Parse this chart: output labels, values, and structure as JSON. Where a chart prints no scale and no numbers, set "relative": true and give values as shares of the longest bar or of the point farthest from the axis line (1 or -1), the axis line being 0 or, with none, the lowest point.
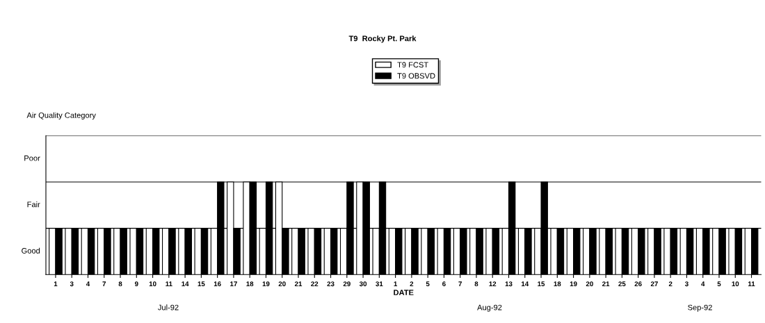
{
  "chart_data": {
    "type": "bar",
    "title": "T9  Rocky Pt. Park",
    "xlabel": "DATE",
    "categories": [
      "1",
      "3",
      "4",
      "7",
      "8",
      "9",
      "10",
      "11",
      "14",
      "15",
      "16",
      "17",
      "18",
      "19",
      "20",
      "21",
      "22",
      "23",
      "29",
      "30",
      "31",
      "1",
      "2",
      "5",
      "6",
      "7",
      "8",
      "12",
      "13",
      "14",
      "15",
      "18",
      "19",
      "20",
      "21",
      "25",
      "26",
      "27",
      "2",
      "3",
      "4",
      "5",
      "10",
      "11"
    ],
    "series": [
      {
        "name": "T9 FCST",
        "color": "#ffffff",
        "values": [
          0.5,
          0.5,
          0.5,
          0.5,
          0.5,
          0.5,
          0.5,
          0.5,
          0.5,
          0.5,
          0.5,
          1,
          1,
          0.5,
          1,
          0.5,
          0.5,
          0.5,
          0.5,
          1,
          0.5,
          0.5,
          0.5,
          0.5,
          0.5,
          0.5,
          0.5,
          0.5,
          0.5,
          0.5,
          0.5,
          0.5,
          0.5,
          0.5,
          0.5,
          0.5,
          0.5,
          0.5,
          0.5,
          0.5,
          0.5,
          0.5,
          0.5,
          0.5
        ]
      },
      {
        "name": "T9 OBSVD",
        "color": "#000000",
        "values": [
          0.5,
          0.5,
          0.5,
          0.5,
          0.5,
          0.5,
          0.5,
          0.5,
          0.5,
          0.5,
          1,
          0.5,
          1,
          1,
          0.5,
          0.5,
          0.5,
          0.5,
          1,
          1,
          1,
          0.5,
          0.5,
          0.5,
          0.5,
          0.5,
          0.5,
          0.5,
          1,
          0.5,
          1,
          0.5,
          0.5,
          0.5,
          0.5,
          0.5,
          0.5,
          0.5,
          0.5,
          0.5,
          0.5,
          0.5,
          0.5,
          0.5
        ]
      }
    ],
    "relative": true,
    "ref_lines": [
      {
        "axis": "y",
        "value": 0.5,
        "label": null,
        "color": "#000000"
      },
      {
        "axis": "y",
        "value": 1,
        "label": null,
        "color": "#000000"
      },
      {
        "axis": "y",
        "value": 1.5,
        "label": null,
        "color": "#000000"
      }
    ],
    "legend": "top",
    "annotations": [
      "Air Quality Category",
      "Good",
      "Fair",
      "Poor",
      "Jul-92",
      "Aug-92",
      "Sep-92"
    ]
  }
}
